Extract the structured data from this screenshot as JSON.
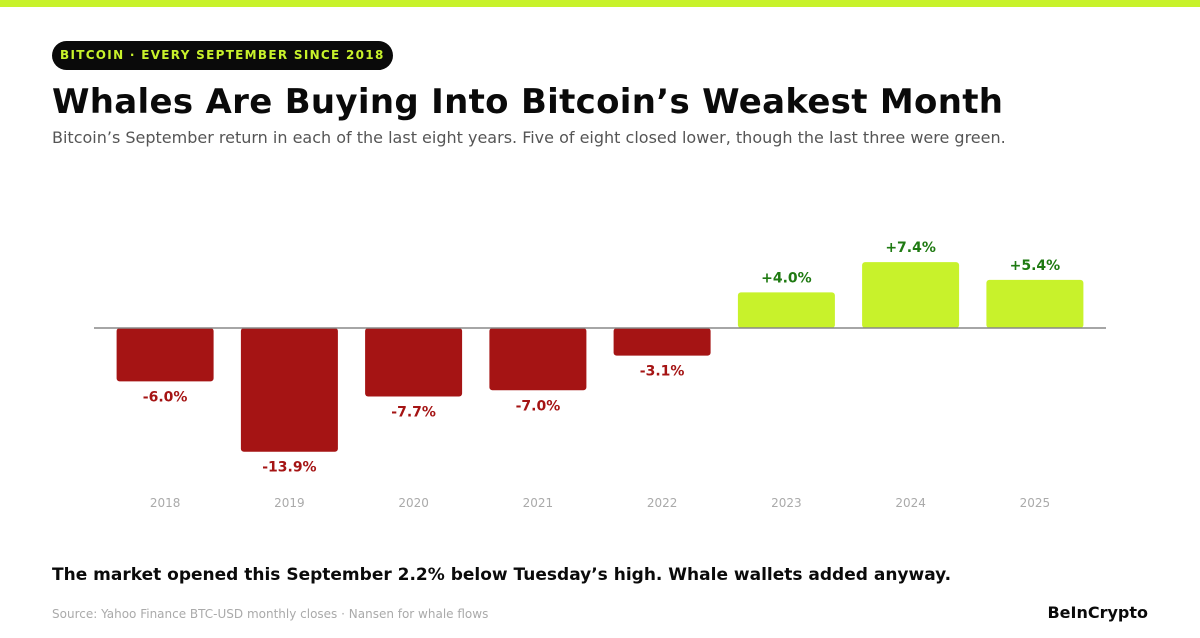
{
  "header": {
    "kicker": "BITCOIN · EVERY SEPTEMBER SINCE 2018",
    "title": "Whales Are Buying Into Bitcoin’s Weakest Month",
    "subtitle": "Bitcoin’s September return in each of the last eight years. Five of eight closed lower, though the last three were green."
  },
  "chart_data": {
    "type": "bar",
    "categories": [
      "2018",
      "2019",
      "2020",
      "2021",
      "2022",
      "2023",
      "2024",
      "2025"
    ],
    "values": [
      -6.0,
      -13.9,
      -7.7,
      -7.0,
      -3.1,
      4.0,
      7.4,
      5.4
    ],
    "data_labels": [
      "-6.0%",
      "-13.9%",
      "-7.7%",
      "-7.0%",
      "-3.1%",
      "+4.0%",
      "+7.4%",
      "+5.4%"
    ],
    "title": "",
    "xlabel": "",
    "ylabel": "",
    "grid": false,
    "legend": "none",
    "colors": {
      "negative_bar": "#a51414",
      "positive_bar": "#c8f22b",
      "negative_label": "#a51414",
      "positive_label": "#1f7a12",
      "zero_line": "#888888",
      "tick_label": "#aaaaaa"
    }
  },
  "footer": {
    "takeaway": "The market opened this September 2.2% below Tuesday’s high. Whale wallets added anyway.",
    "source": "Source: Yahoo Finance BTC-USD monthly closes · Nansen for whale flows",
    "brand": "BeInCrypto"
  },
  "colors": {
    "accent": "#c8f22b",
    "pill_background": "#0a0a0a"
  }
}
